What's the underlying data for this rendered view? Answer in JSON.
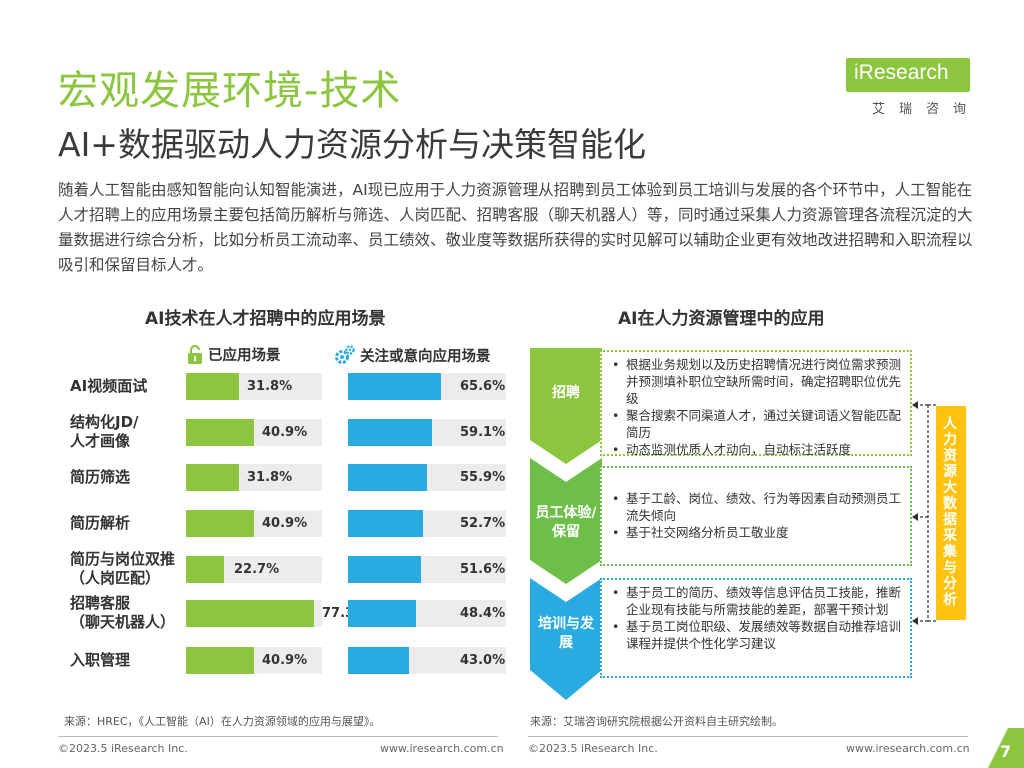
{
  "header": {
    "title": "宏观发展环境-技术",
    "subtitle": "AI+数据驱动人力资源分析与决策智能化",
    "intro": "随着人工智能由感知智能向认知智能演进，AI现已应用于人力资源管理从招聘到员工体验到员工培训与发展的各个环节中，人工智能在人才招聘上的应用场景主要包括简历解析与筛选、人岗匹配、招聘客服（聊天机器人）等，同时通过采集人力资源管理各流程沉淀的大量数据进行综合分析，比如分析员工流动率、员工绩效、敬业度等数据所获得的实时见解可以辅助企业更有效地改进招聘和入职流程以吸引和保留目标人才。"
  },
  "logo": {
    "name": "iResearch",
    "chinese": "艾瑞咨询",
    "color": "#8cc63f"
  },
  "chart_data": {
    "type": "bar",
    "title": "AI技术在人才招聘中的应用场景",
    "categories": [
      "AI视频面试",
      "结构化JD/人才画像",
      "简历筛选",
      "简历解析",
      "简历与岗位双推（人岗匹配）",
      "招聘客服（聊天机器人）",
      "入职管理"
    ],
    "category_lines": [
      [
        "AI视频面试"
      ],
      [
        "结构化JD/",
        "人才画像"
      ],
      [
        "简历筛选"
      ],
      [
        "简历解析"
      ],
      [
        "简历与岗位双推",
        "（人岗匹配）"
      ],
      [
        "招聘客服",
        "（聊天机器人）"
      ],
      [
        "入职管理"
      ]
    ],
    "series": [
      {
        "name": "已应用场景",
        "color": "#8cc63f",
        "icon": "lock-icon",
        "values": [
          31.8,
          40.9,
          31.8,
          40.9,
          22.7,
          77.3,
          40.9
        ],
        "labels": [
          "31.8%",
          "40.9%",
          "31.8%",
          "40.9%",
          "22.7%",
          "77.3%",
          "40.9%"
        ]
      },
      {
        "name": "关注或意向应用场景",
        "color": "#29abe2",
        "icon": "gears-icon",
        "values": [
          65.6,
          59.1,
          55.9,
          52.7,
          51.6,
          48.4,
          43.0
        ],
        "labels": [
          "65.6%",
          "59.1%",
          "55.9%",
          "52.7%",
          "51.6%",
          "48.4%",
          "43.0%"
        ]
      }
    ],
    "ylim": [
      0,
      100
    ],
    "source": "来源：HREC，《人工智能（AI）在人力资源领域的应用与展望》。"
  },
  "diagram": {
    "title": "AI在人力资源管理中的应用",
    "stages": [
      {
        "label": "招聘",
        "color": "#8cc63f",
        "items": [
          "根据业务规划以及历史招聘情况进行岗位需求预测并预测填补职位空缺所需时间，确定招聘职位优先级",
          "聚合搜索不同渠道人才，通过关键词语义智能匹配简历",
          "动态监测优质人才动向，自动标注活跃度"
        ]
      },
      {
        "label": "员工体验/保留",
        "color": "#6dbf4a",
        "items": [
          "基于工龄、岗位、绩效、行为等因素自动预测员工流失倾向",
          "基于社交网络分析员工敬业度"
        ]
      },
      {
        "label": "培训与发展",
        "color": "#29abe2",
        "items": [
          "基于员工的简历、绩效等信息评估员工技能，推断企业现有技能与所需技能的差距，部署干预计划",
          "基于员工岗位职级、发展绩效等数据自动推荐培训课程并提供个性化学习建议"
        ]
      }
    ],
    "side_label": "人力资源大数据采集与分析",
    "side_color": "#ffc20e",
    "source": "来源：艾瑞咨询研究院根据公开资料自主研究绘制。"
  },
  "footer": {
    "copyright_left": "©2023.5 iResearch Inc.",
    "url_left": "www.iresearch.com.cn",
    "copyright_right": "©2023.5 iResearch Inc.",
    "url_right": "www.iresearch.com.cn",
    "page_number": "7"
  }
}
